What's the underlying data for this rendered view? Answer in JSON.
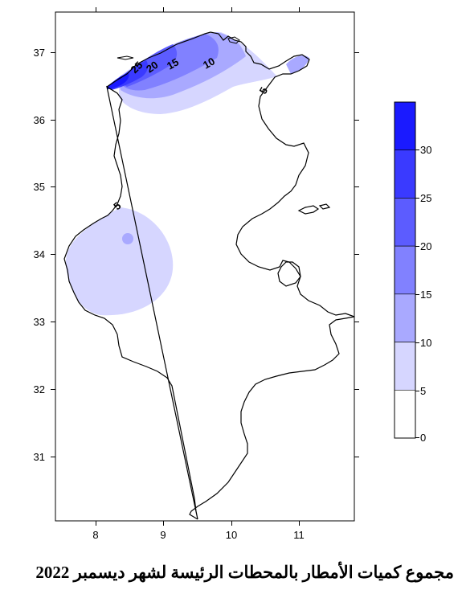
{
  "map": {
    "x_ticks": [
      "8",
      "9",
      "10",
      "11"
    ],
    "y_ticks": [
      "37",
      "36",
      "35",
      "34",
      "33",
      "32",
      "31"
    ],
    "contour_labels": [
      "25",
      "20",
      "15",
      "10",
      "5",
      "5"
    ]
  },
  "legend": {
    "ticks": [
      "30",
      "25",
      "20",
      "15",
      "10",
      "5",
      "0"
    ],
    "colors": [
      "#1a1aff",
      "#3a3aff",
      "#5c5cff",
      "#8181ff",
      "#a9a9ff",
      "#d6d6ff",
      "#ffffff"
    ]
  },
  "caption": "مجموع كميات الأمطار بالمحطات الرئيسة لشهر ديسمبر 2022"
}
